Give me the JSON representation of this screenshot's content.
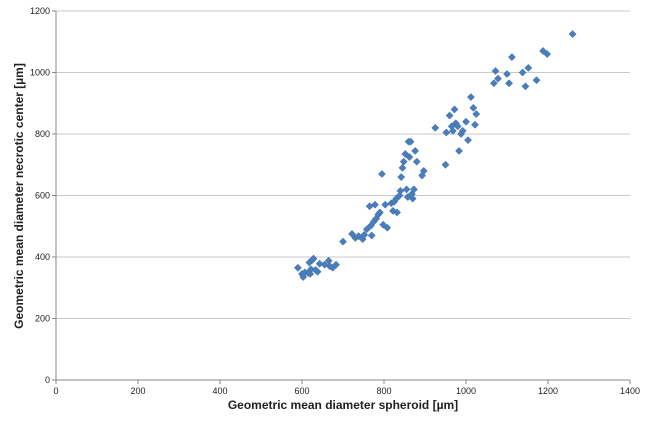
{
  "chart_data": {
    "type": "scatter",
    "title": "",
    "xlabel": "Geometric mean diameter spheroid [µm]",
    "ylabel": "Geometric mean diameter necrotic center [µm]",
    "xlim": [
      0,
      1400
    ],
    "ylim": [
      0,
      1200
    ],
    "xticks": [
      "0",
      "200",
      "400",
      "600",
      "800",
      "1000",
      "1200",
      "1400"
    ],
    "yticks": [
      "0",
      "200",
      "400",
      "600",
      "800",
      "1000",
      "1200"
    ],
    "grid": "horizontal",
    "legend": "none",
    "colors": {
      "marker": "#4a7ebb",
      "grid": "#c8c8c8",
      "axis": "#888888"
    },
    "series": [
      {
        "marker": "diamond",
        "points": [
          [
            590,
            365
          ],
          [
            600,
            345
          ],
          [
            603,
            335
          ],
          [
            607,
            350
          ],
          [
            615,
            348
          ],
          [
            618,
            382
          ],
          [
            620,
            345
          ],
          [
            622,
            360
          ],
          [
            625,
            390
          ],
          [
            628,
            395
          ],
          [
            633,
            358
          ],
          [
            638,
            352
          ],
          [
            643,
            378
          ],
          [
            655,
            375
          ],
          [
            665,
            388
          ],
          [
            668,
            370
          ],
          [
            675,
            365
          ],
          [
            683,
            375
          ],
          [
            700,
            450
          ],
          [
            722,
            475
          ],
          [
            730,
            462
          ],
          [
            738,
            468
          ],
          [
            748,
            458
          ],
          [
            752,
            472
          ],
          [
            758,
            490
          ],
          [
            765,
            565
          ],
          [
            768,
            502
          ],
          [
            770,
            470
          ],
          [
            775,
            515
          ],
          [
            778,
            570
          ],
          [
            781,
            525
          ],
          [
            786,
            538
          ],
          [
            790,
            545
          ],
          [
            795,
            670
          ],
          [
            798,
            505
          ],
          [
            803,
            570
          ],
          [
            808,
            495
          ],
          [
            818,
            575
          ],
          [
            822,
            550
          ],
          [
            825,
            580
          ],
          [
            830,
            590
          ],
          [
            832,
            545
          ],
          [
            838,
            600
          ],
          [
            840,
            615
          ],
          [
            842,
            660
          ],
          [
            845,
            690
          ],
          [
            848,
            710
          ],
          [
            852,
            735
          ],
          [
            855,
            620
          ],
          [
            858,
            595
          ],
          [
            860,
            775
          ],
          [
            862,
            725
          ],
          [
            865,
            775
          ],
          [
            868,
            605
          ],
          [
            870,
            590
          ],
          [
            873,
            620
          ],
          [
            876,
            745
          ],
          [
            880,
            710
          ],
          [
            893,
            665
          ],
          [
            897,
            680
          ],
          [
            925,
            820
          ],
          [
            950,
            700
          ],
          [
            952,
            805
          ],
          [
            960,
            860
          ],
          [
            965,
            825
          ],
          [
            968,
            810
          ],
          [
            972,
            880
          ],
          [
            975,
            835
          ],
          [
            980,
            825
          ],
          [
            983,
            745
          ],
          [
            988,
            800
          ],
          [
            992,
            810
          ],
          [
            1000,
            840
          ],
          [
            1005,
            780
          ],
          [
            1012,
            920
          ],
          [
            1018,
            885
          ],
          [
            1022,
            830
          ],
          [
            1025,
            865
          ],
          [
            1068,
            965
          ],
          [
            1072,
            1005
          ],
          [
            1078,
            980
          ],
          [
            1100,
            995
          ],
          [
            1105,
            965
          ],
          [
            1112,
            1050
          ],
          [
            1138,
            1000
          ],
          [
            1145,
            955
          ],
          [
            1152,
            1015
          ],
          [
            1172,
            975
          ],
          [
            1188,
            1070
          ],
          [
            1198,
            1060
          ],
          [
            1260,
            1125
          ]
        ]
      }
    ]
  }
}
